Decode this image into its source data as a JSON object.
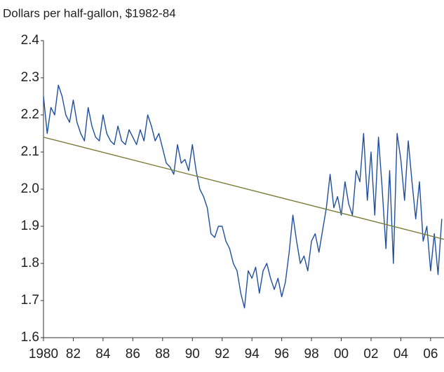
{
  "chart_data": {
    "type": "line",
    "title": "Dollars per half-gallon, $1982-84",
    "series": [
      {
        "color": "#1f4fa0",
        "x": [
          1980,
          1980.25,
          1980.5,
          1980.75,
          1981,
          1981.25,
          1981.5,
          1981.75,
          1982,
          1982.25,
          1982.5,
          1982.75,
          1983,
          1983.25,
          1983.5,
          1983.75,
          1984,
          1984.25,
          1984.5,
          1984.75,
          1985,
          1985.25,
          1985.5,
          1985.75,
          1986,
          1986.25,
          1986.5,
          1986.75,
          1987,
          1987.25,
          1987.5,
          1987.75,
          1988,
          1988.25,
          1988.5,
          1988.75,
          1989,
          1989.25,
          1989.5,
          1989.75,
          1990,
          1990.25,
          1990.5,
          1990.75,
          1991,
          1991.25,
          1991.5,
          1991.75,
          1992,
          1992.25,
          1992.5,
          1992.75,
          1993,
          1993.25,
          1993.5,
          1993.75,
          1994,
          1994.25,
          1994.5,
          1994.75,
          1995,
          1995.25,
          1995.5,
          1995.75,
          1996,
          1996.25,
          1996.5,
          1996.75,
          1997,
          1997.25,
          1997.5,
          1997.75,
          1998,
          1998.25,
          1998.5,
          1998.75,
          1999,
          1999.25,
          1999.5,
          1999.75,
          2000,
          2000.25,
          2000.5,
          2000.75,
          2001,
          2001.25,
          2001.5,
          2001.75,
          2002,
          2002.25,
          2002.5,
          2002.75,
          2003,
          2003.25,
          2003.5,
          2003.75,
          2004,
          2004.25,
          2004.5,
          2004.75,
          2005,
          2005.25,
          2005.5,
          2005.75,
          2006,
          2006.25,
          2006.5,
          2006.75
        ],
        "values": [
          2.25,
          2.15,
          2.22,
          2.2,
          2.28,
          2.25,
          2.2,
          2.18,
          2.24,
          2.18,
          2.15,
          2.13,
          2.22,
          2.17,
          2.14,
          2.13,
          2.2,
          2.15,
          2.13,
          2.12,
          2.17,
          2.13,
          2.12,
          2.16,
          2.14,
          2.12,
          2.16,
          2.13,
          2.2,
          2.17,
          2.13,
          2.15,
          2.11,
          2.07,
          2.06,
          2.04,
          2.12,
          2.07,
          2.08,
          2.05,
          2.12,
          2.05,
          2.0,
          1.98,
          1.95,
          1.88,
          1.87,
          1.9,
          1.9,
          1.86,
          1.84,
          1.8,
          1.78,
          1.72,
          1.68,
          1.78,
          1.76,
          1.79,
          1.72,
          1.78,
          1.8,
          1.76,
          1.73,
          1.76,
          1.71,
          1.75,
          1.83,
          1.93,
          1.86,
          1.8,
          1.82,
          1.78,
          1.86,
          1.88,
          1.83,
          1.89,
          1.95,
          2.04,
          1.95,
          1.98,
          1.93,
          2.02,
          1.96,
          1.93,
          2.05,
          2.02,
          2.15,
          1.97,
          2.1,
          1.93,
          2.14,
          2.0,
          1.84,
          2.05,
          1.8,
          2.15,
          2.08,
          1.97,
          2.13,
          2.02,
          1.92,
          2.02,
          1.86,
          1.9,
          1.78,
          1.88,
          1.77,
          1.92
        ]
      },
      {
        "color": "#7d7d3c",
        "x": [
          1980,
          2006.9
        ],
        "values": [
          2.14,
          1.865
        ]
      }
    ],
    "xlim": [
      1980,
      2006.9
    ],
    "ylim": [
      1.6,
      2.4
    ],
    "xticks": [
      1980,
      {
        "value": 1982,
        "label": "82"
      },
      {
        "value": 1984,
        "label": "84"
      },
      {
        "value": 1986,
        "label": "86"
      },
      {
        "value": 1988,
        "label": "88"
      },
      {
        "value": 1990,
        "label": "90"
      },
      {
        "value": 1992,
        "label": "92"
      },
      {
        "value": 1994,
        "label": "94"
      },
      {
        "value": 1996,
        "label": "96"
      },
      {
        "value": 1998,
        "label": "98"
      },
      {
        "value": 2000,
        "label": "00"
      },
      {
        "value": 2002,
        "label": "02"
      },
      {
        "value": 2004,
        "label": "04"
      },
      {
        "value": 2006,
        "label": "06"
      }
    ],
    "yticks": [
      1.6,
      1.7,
      1.8,
      1.9,
      {
        "value": 2,
        "label": "2.0"
      },
      2.1,
      2.2,
      2.3,
      2.4
    ]
  }
}
